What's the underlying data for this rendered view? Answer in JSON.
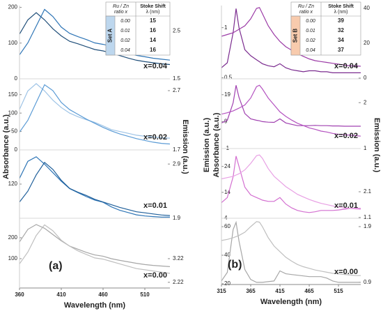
{
  "chart_data": [
    {
      "type": "line",
      "panel_label": "(a)",
      "xlabel": "Wavelength (nm)",
      "ylabel": "Absorbance (a.u.)",
      "y2label": "Emission (a.u.)",
      "xlim": [
        360,
        540
      ],
      "xticks": [
        360,
        410,
        460,
        510
      ],
      "x": [
        360,
        370,
        380,
        390,
        400,
        410,
        420,
        430,
        440,
        450,
        460,
        470,
        480,
        490,
        500,
        510,
        520,
        530,
        540
      ],
      "table": {
        "header": [
          [
            "Ru / Zn",
            "ratio x"
          ],
          [
            "Stoke Shift",
            "λ (nm)"
          ]
        ],
        "set": "Set A",
        "set_color": "#bdd7ee",
        "ratios": [
          "0.00",
          "0.01",
          "0.02",
          "0.04"
        ],
        "shifts": [
          "15",
          "16",
          "14",
          "16"
        ]
      },
      "subplots": [
        {
          "annotation": "x=0.04",
          "ylim": [
            0,
            205
          ],
          "yticks": [
            0,
            100,
            200
          ],
          "y2lim": [
            1.5,
            3.03
          ],
          "y2ticks": [
            1.5,
            2.5
          ],
          "series": [
            {
              "color": "#1f4e79",
              "values": [
                125,
                165,
                185,
                165,
                140,
                120,
                105,
                98,
                90,
                82,
                78,
                72,
                65,
                58,
                52,
                48,
                45,
                42,
                40
              ]
            },
            {
              "color": "#2e75b6",
              "axis": "y2",
              "values": [
                2.0,
                2.25,
                2.6,
                2.95,
                2.8,
                2.58,
                2.45,
                2.38,
                2.32,
                2.25,
                2.22,
                2.18,
                2.1,
                2.04,
                1.99,
                1.96,
                1.93,
                1.91,
                1.89
              ]
            }
          ]
        },
        {
          "annotation": "x=0.02",
          "ylim": [
            0,
            193
          ],
          "yticks": [
            0,
            50,
            100,
            150
          ],
          "y2lim": [
            1.7,
            2.9
          ],
          "y2ticks": [
            1.7,
            2.7
          ],
          "series": [
            {
              "color": "#9dc3e6",
              "values": [
                110,
                160,
                180,
                160,
                135,
                115,
                100,
                90,
                82,
                75,
                65,
                55,
                50,
                45,
                40,
                37,
                35,
                33,
                32
              ]
            },
            {
              "color": "#5b9bd5",
              "axis": "y2",
              "values": [
                2.0,
                2.2,
                2.5,
                2.8,
                2.7,
                2.5,
                2.38,
                2.3,
                2.22,
                2.15,
                2.08,
                2.02,
                1.97,
                1.93,
                1.89,
                1.86,
                1.83,
                1.81,
                1.8
              ]
            }
          ]
        },
        {
          "annotation": "x=0.01",
          "ylim": [
            60,
            180
          ],
          "yticks": [
            120
          ],
          "y2lim": [
            1.9,
            3.16
          ],
          "y2ticks": [
            1.9,
            2.9
          ],
          "series": [
            {
              "color": "#2e75b6",
              "values": [
                130,
                160,
                168,
                155,
                140,
                125,
                112,
                105,
                98,
                92,
                88,
                80,
                74,
                70,
                66,
                64,
                63,
                62,
                62
              ]
            },
            {
              "color": "#1f5f9a",
              "axis": "y2",
              "values": [
                2.2,
                2.4,
                2.7,
                2.93,
                2.8,
                2.6,
                2.45,
                2.38,
                2.32,
                2.25,
                2.2,
                2.15,
                2.1,
                2.06,
                2.02,
                2.0,
                1.98,
                1.96,
                1.95
              ]
            }
          ]
        },
        {
          "annotation": "x=0.00",
          "ylim": [
            -40,
            293
          ],
          "yticks": [
            100,
            200
          ],
          "y2lim": [
            1.98,
            4.93
          ],
          "y2ticks": [
            2.22,
            3.22
          ],
          "series": [
            {
              "color": "#a6a6a6",
              "values": [
                180,
                240,
                263,
                245,
                215,
                185,
                160,
                145,
                130,
                118,
                112,
                100,
                92,
                85,
                78,
                72,
                68,
                65,
                62
              ]
            },
            {
              "color": "#bfbfbf",
              "axis": "y2",
              "values": [
                3.0,
                3.5,
                4.2,
                4.65,
                4.4,
                4.0,
                3.75,
                3.55,
                3.4,
                3.25,
                3.2,
                3.1,
                3.0,
                2.9,
                2.8,
                2.75,
                2.7,
                2.65,
                2.6
              ]
            }
          ]
        }
      ]
    },
    {
      "type": "line",
      "panel_label": "(b)",
      "xlabel": "Wavelength (nm)",
      "ylabel_outer": "Emission (a.u.)",
      "ylabel": "Absorbance (a.u.)",
      "y2label": "Emission (a.u.)",
      "xlim": [
        315,
        553
      ],
      "xticks": [
        315,
        365,
        415,
        465,
        515
      ],
      "x": [
        315,
        325,
        335,
        340,
        345,
        355,
        365,
        375,
        380,
        385,
        395,
        405,
        415,
        425,
        435,
        445,
        455,
        465,
        475,
        485,
        495,
        505,
        515,
        525,
        535,
        545,
        553
      ],
      "table": {
        "header": [
          [
            "Ru / Zn",
            "ratio x"
          ],
          [
            "Stoke Shift",
            "λ (nm)"
          ]
        ],
        "set": "Set B",
        "set_color": "#f8cbad",
        "ratios": [
          "0.00",
          "0.01",
          "0.02",
          "0.04"
        ],
        "shifts": [
          "39",
          "32",
          "34",
          "37"
        ]
      },
      "subplots": [
        {
          "annotation": "x=0.04",
          "ylim": [
            0.49,
            1.22
          ],
          "yticks": [
            0.5,
            1
          ],
          "y2lim": [
            -0.4,
            41.6
          ],
          "y2ticks": [
            0,
            20,
            40
          ],
          "series": [
            {
              "color": "#7b2c8f",
              "values": [
                0.6,
                0.65,
                0.95,
                1.19,
                1.0,
                0.78,
                0.72,
                0.68,
                0.66,
                0.64,
                0.62,
                0.61,
                0.64,
                0.6,
                0.58,
                0.57,
                0.56,
                0.57,
                0.57,
                0.56,
                0.56,
                0.55,
                0.55,
                0.55,
                0.55,
                0.55,
                0.55
              ]
            },
            {
              "color": "#9b3aa6",
              "axis": "y2",
              "values": [
                24,
                25,
                26,
                27,
                28,
                30,
                34,
                40,
                40.5,
                37,
                30,
                25,
                21,
                18,
                16,
                14,
                12.5,
                11,
                10,
                9.5,
                9,
                8.5,
                8,
                7.5,
                7,
                7,
                6.8
              ]
            }
          ]
        },
        {
          "annotation": "x=0.02",
          "ylim": [
            -1,
            24.9
          ],
          "yticks": [
            -1,
            9,
            19
          ],
          "y2lim": [
            1,
            2.52
          ],
          "y2ticks": [
            1,
            2
          ],
          "series": [
            {
              "color": "#a040b0",
              "values": [
                8.5,
                9.5,
                16,
                22.5,
                18,
                12,
                10,
                9.5,
                9.3,
                9,
                8.8,
                8.7,
                10,
                8.5,
                8,
                7.5,
                7.5,
                7.5,
                7.6,
                7.5,
                7.5,
                7.4,
                7.4,
                7.3,
                7.3,
                7.3,
                7.3
              ]
            },
            {
              "color": "#b452c0",
              "axis": "y2",
              "values": [
                1.75,
                1.78,
                1.82,
                1.85,
                1.88,
                1.95,
                2.1,
                2.35,
                2.38,
                2.3,
                2.1,
                1.95,
                1.8,
                1.7,
                1.62,
                1.55,
                1.5,
                1.45,
                1.42,
                1.38,
                1.36,
                1.33,
                1.31,
                1.3,
                1.29,
                1.28,
                1.27
              ]
            }
          ]
        },
        {
          "annotation": "x=0.01",
          "ylim": [
            4,
            30.9
          ],
          "yticks": [
            4,
            14,
            24
          ],
          "y2lim": [
            1.07,
            3.78
          ],
          "y2ticks": [
            1.1,
            2.1
          ],
          "series": [
            {
              "color": "#d36fd0",
              "values": [
                10,
                12,
                20,
                28,
                24,
                16,
                13,
                12,
                11.5,
                11,
                10.5,
                10.5,
                12,
                9.5,
                8,
                7,
                6.5,
                6.2,
                6.5,
                7,
                7,
                7,
                7.2,
                7.5,
                7.8,
                7.8,
                7.8
              ]
            },
            {
              "color": "#e8a0e4",
              "axis": "y2",
              "values": [
                2.6,
                2.65,
                2.7,
                2.75,
                2.8,
                2.95,
                3.2,
                3.5,
                3.53,
                3.4,
                3.0,
                2.7,
                2.5,
                2.3,
                2.15,
                2.0,
                1.9,
                1.8,
                1.72,
                1.65,
                1.6,
                1.55,
                1.5,
                1.47,
                1.45,
                1.43,
                1.42
              ]
            }
          ]
        },
        {
          "annotation": "x=0.00",
          "ylim": [
            19.5,
            65.9
          ],
          "yticks": [
            20,
            40,
            60
          ],
          "y2lim": [
            0.86,
            2.05
          ],
          "y2ticks": [
            0.9,
            1.9
          ],
          "series": [
            {
              "color": "#a6a6a6",
              "values": [
                22,
                28,
                58,
                63,
                50,
                30,
                23,
                21,
                21,
                21,
                21.5,
                22,
                29,
                27,
                26.5,
                26,
                25.5,
                25,
                25,
                25,
                24,
                22,
                21,
                21,
                21,
                21,
                21
              ]
            },
            {
              "color": "#bfbfbf",
              "axis": "y2",
              "values": [
                1.65,
                1.67,
                1.7,
                1.72,
                1.74,
                1.8,
                1.9,
                1.99,
                1.98,
                1.9,
                1.7,
                1.55,
                1.45,
                1.35,
                1.28,
                1.22,
                1.18,
                1.15,
                1.12,
                1.1,
                1.08,
                1.06,
                1.05,
                1.04,
                1.03,
                1.02,
                1.02
              ]
            }
          ]
        }
      ]
    }
  ]
}
